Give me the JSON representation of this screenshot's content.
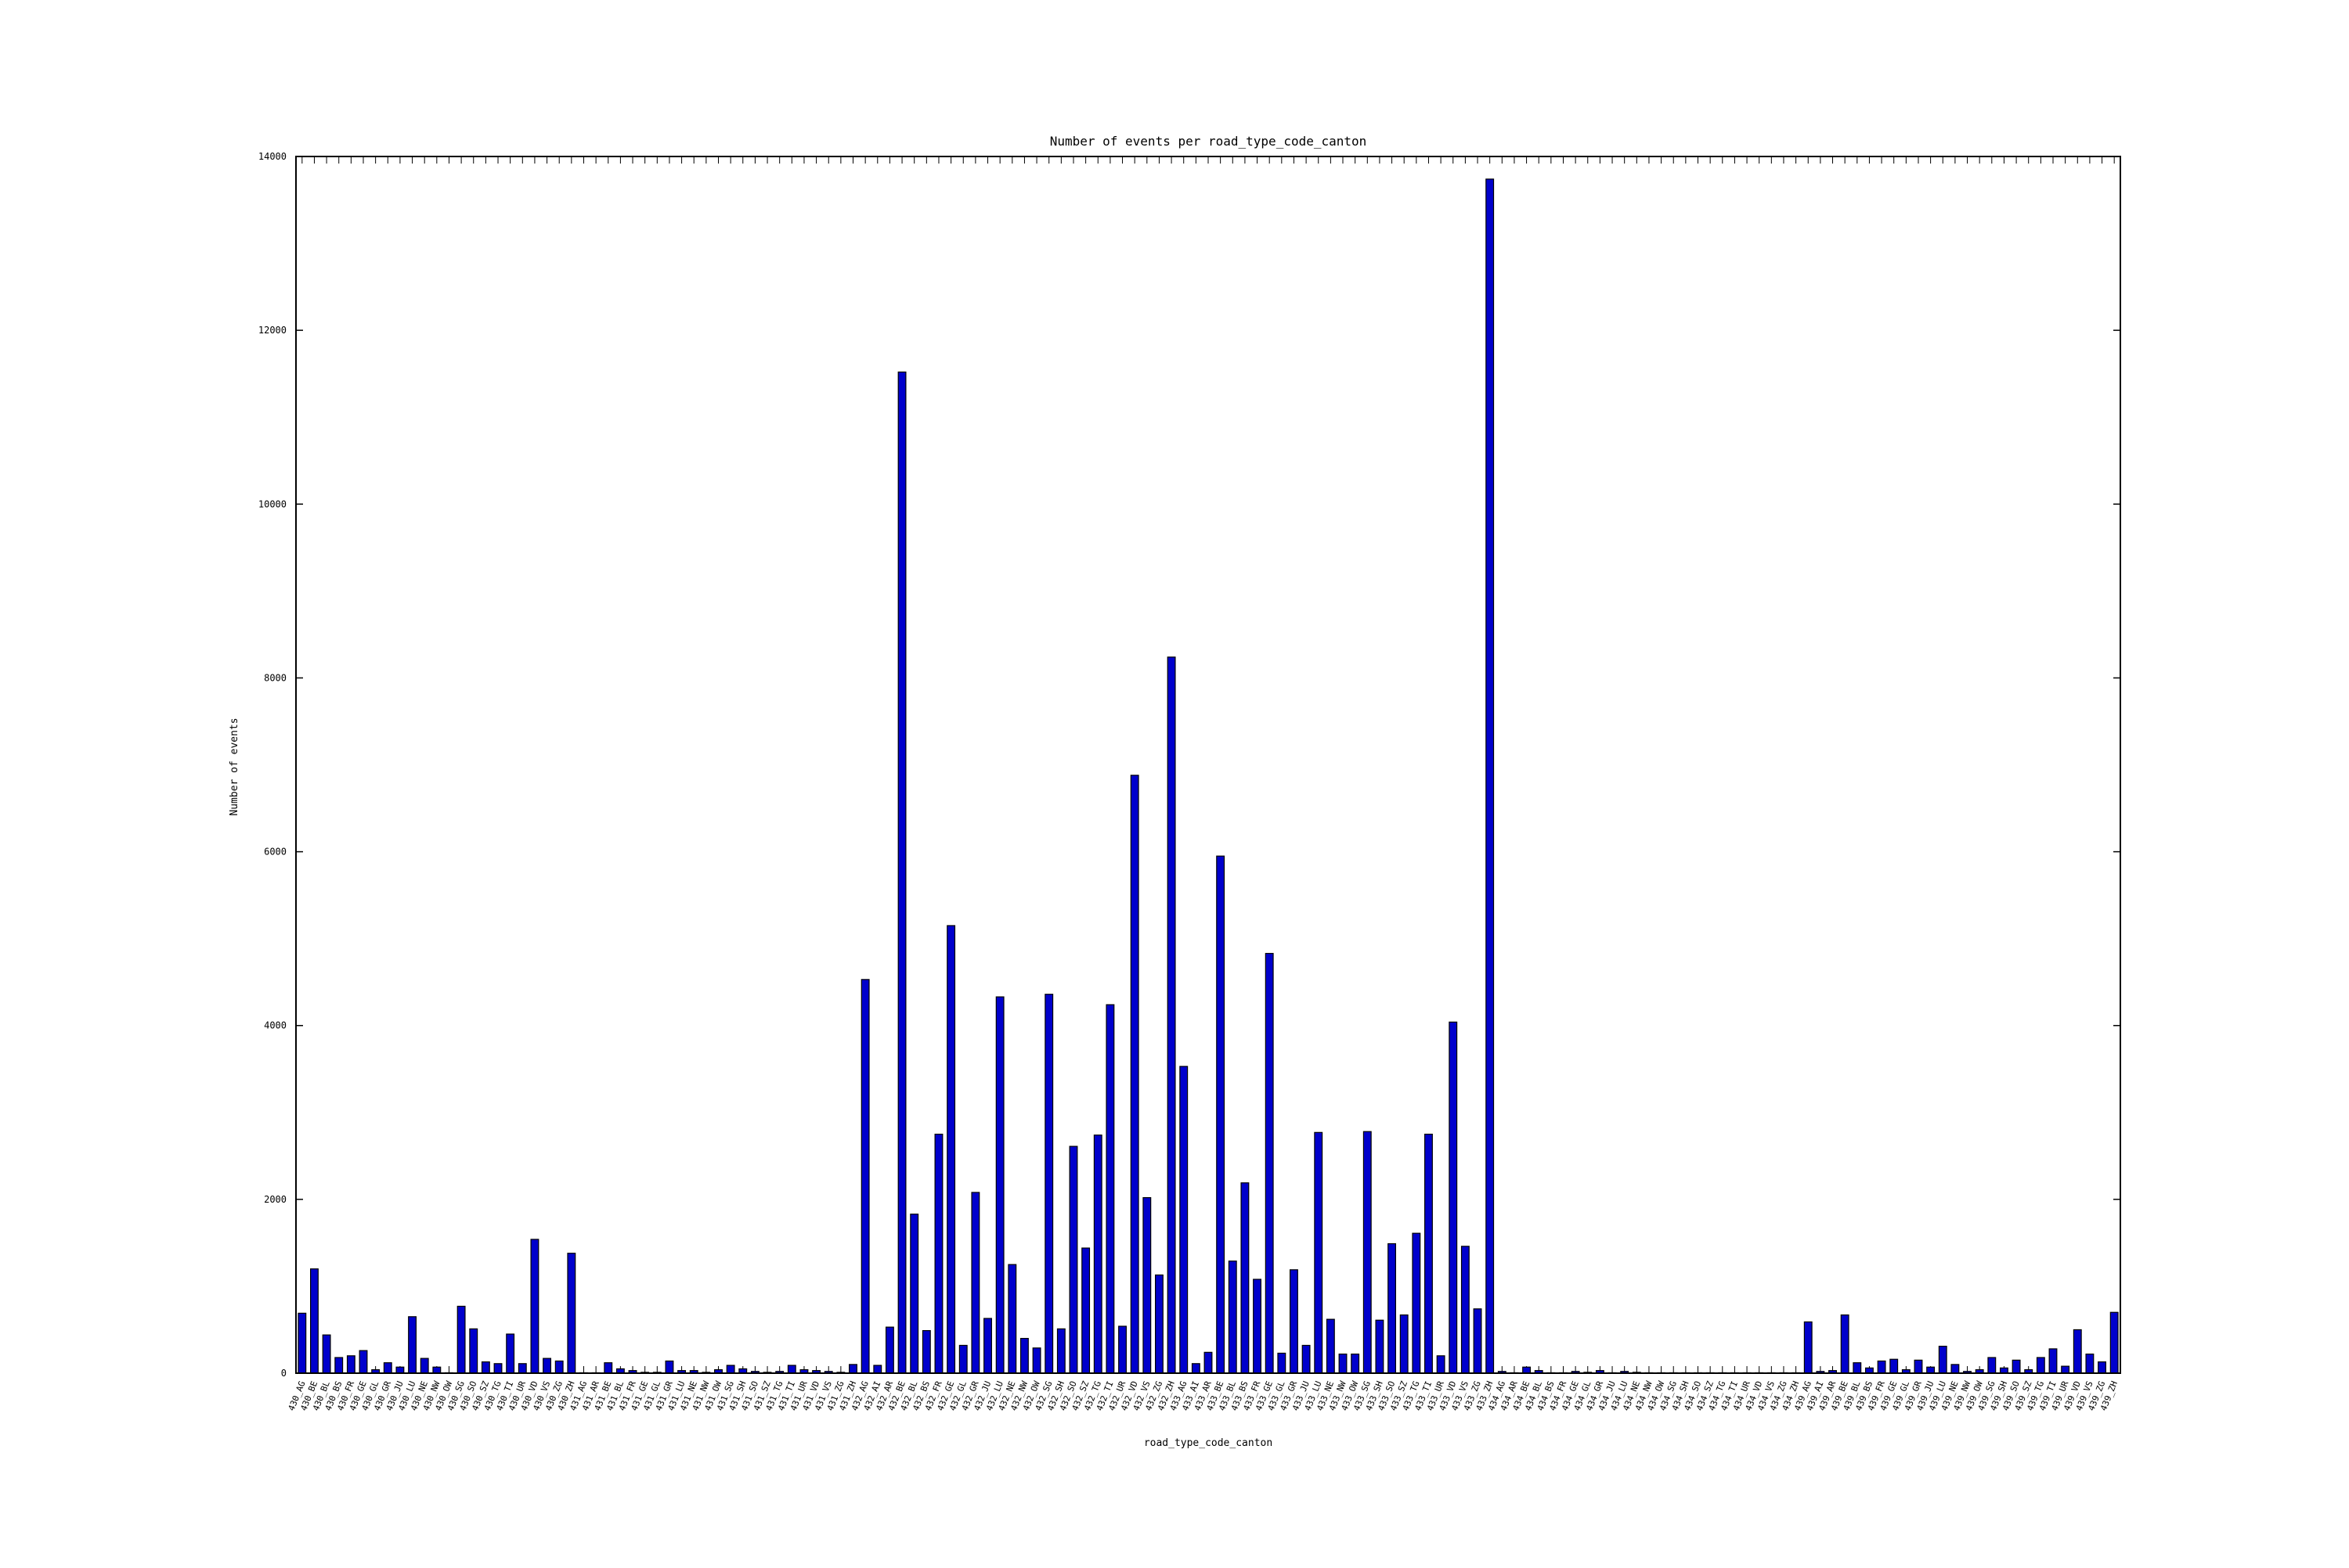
{
  "colors": {
    "bar": "#0000cc",
    "bar_edge": "#000000",
    "axis": "#000000",
    "background": "#ffffff"
  },
  "chart_data": {
    "type": "bar",
    "title": "Number of events per road_type_code_canton",
    "xlabel": "road_type_code_canton",
    "ylabel": "Number of events",
    "ylim": [
      0,
      14000
    ],
    "yticks": [
      0,
      2000,
      4000,
      6000,
      8000,
      10000,
      12000,
      14000
    ],
    "grid": false,
    "legend": "none",
    "categories": [
      "430_AG",
      "430_BE",
      "430_BL",
      "430_BS",
      "430_FR",
      "430_GE",
      "430_GL",
      "430_GR",
      "430_JU",
      "430_LU",
      "430_NE",
      "430_NW",
      "430_OW",
      "430_SG",
      "430_SO",
      "430_SZ",
      "430_TG",
      "430_TI",
      "430_UR",
      "430_VD",
      "430_VS",
      "430_ZG",
      "430_ZH",
      "431_AG",
      "431_AR",
      "431_BE",
      "431_BL",
      "431_FR",
      "431_GE",
      "431_GL",
      "431_GR",
      "431_LU",
      "431_NE",
      "431_NW",
      "431_OW",
      "431_SG",
      "431_SH",
      "431_SO",
      "431_SZ",
      "431_TG",
      "431_TI",
      "431_UR",
      "431_VD",
      "431_VS",
      "431_ZG",
      "431_ZH",
      "432_AG",
      "432_AI",
      "432_AR",
      "432_BE",
      "432_BL",
      "432_BS",
      "432_FR",
      "432_GE",
      "432_GL",
      "432_GR",
      "432_JU",
      "432_LU",
      "432_NE",
      "432_NW",
      "432_OW",
      "432_SG",
      "432_SH",
      "432_SO",
      "432_SZ",
      "432_TG",
      "432_TI",
      "432_UR",
      "432_VD",
      "432_VS",
      "432_ZG",
      "432_ZH",
      "433_AG",
      "433_AI",
      "433_AR",
      "433_BE",
      "433_BL",
      "433_BS",
      "433_FR",
      "433_GE",
      "433_GL",
      "433_GR",
      "433_JU",
      "433_LU",
      "433_NE",
      "433_NW",
      "433_OW",
      "433_SG",
      "433_SH",
      "433_SO",
      "433_SZ",
      "433_TG",
      "433_TI",
      "433_UR",
      "433_VD",
      "433_VS",
      "433_ZG",
      "433_ZH",
      "434_AG",
      "434_AR",
      "434_BE",
      "434_BL",
      "434_BS",
      "434_FR",
      "434_GE",
      "434_GL",
      "434_GR",
      "434_JU",
      "434_LU",
      "434_NE",
      "434_NW",
      "434_OW",
      "434_SG",
      "434_SH",
      "434_SO",
      "434_SZ",
      "434_TG",
      "434_TI",
      "434_UR",
      "434_VD",
      "434_VS",
      "434_ZG",
      "434_ZH",
      "439_AG",
      "439_AI",
      "439_AR",
      "439_BE",
      "439_BL",
      "439_BS",
      "439_FR",
      "439_GE",
      "439_GL",
      "439_GR",
      "439_JU",
      "439_LU",
      "439_NE",
      "439_NW",
      "439_OW",
      "439_SG",
      "439_SH",
      "439_SO",
      "439_SZ",
      "439_TG",
      "439_TI",
      "439_UR",
      "439_VD",
      "439_VS",
      "439_ZG",
      "439_ZH"
    ],
    "values": [
      690,
      1200,
      440,
      180,
      200,
      260,
      40,
      120,
      70,
      650,
      170,
      70,
      5,
      770,
      510,
      130,
      110,
      450,
      110,
      1540,
      170,
      140,
      1380,
      5,
      5,
      120,
      50,
      30,
      10,
      10,
      140,
      30,
      30,
      10,
      40,
      90,
      50,
      20,
      10,
      20,
      90,
      40,
      30,
      20,
      10,
      100,
      4530,
      90,
      530,
      11520,
      1830,
      490,
      2750,
      5150,
      320,
      2080,
      630,
      4330,
      1250,
      400,
      290,
      4360,
      510,
      2610,
      1440,
      2740,
      4240,
      540,
      6880,
      2020,
      1130,
      8240,
      3530,
      110,
      240,
      5950,
      1290,
      2190,
      1080,
      4830,
      230,
      1190,
      320,
      2770,
      620,
      220,
      220,
      2780,
      610,
      1490,
      670,
      1610,
      2750,
      200,
      4040,
      1460,
      740,
      13740,
      20,
      5,
      70,
      30,
      5,
      5,
      20,
      10,
      30,
      5,
      20,
      10,
      5,
      5,
      5,
      5,
      5,
      5,
      5,
      5,
      5,
      5,
      5,
      5,
      5,
      590,
      20,
      30,
      670,
      120,
      60,
      140,
      160,
      40,
      150,
      70,
      310,
      100,
      20,
      40,
      180,
      60,
      150,
      40,
      180,
      280,
      80,
      500,
      220,
      130,
      700
    ]
  }
}
